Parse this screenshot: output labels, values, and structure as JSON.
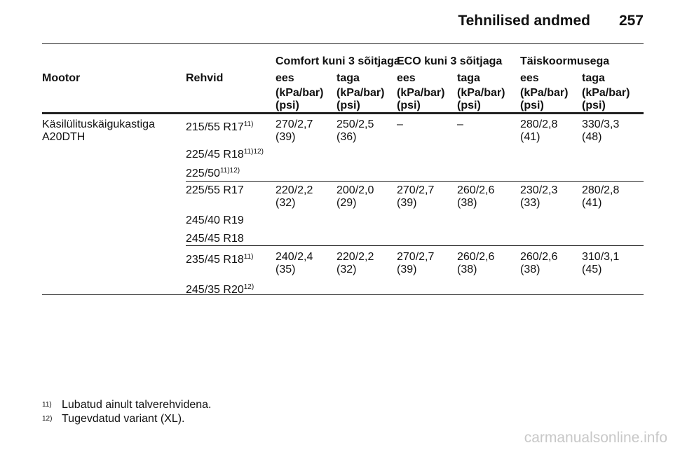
{
  "header": {
    "title": "Tehnilised andmed",
    "page": "257"
  },
  "table": {
    "group_headers": [
      "Comfort kuni 3 sõitjaga",
      "ECO kuni 3 sõitjaga",
      "Täiskoormusega"
    ],
    "columns": [
      "Mootor",
      "Rehvid",
      "ees",
      "taga",
      "ees",
      "taga",
      "ees",
      "taga"
    ],
    "units": [
      [
        "(kPa/bar)",
        "(psi)"
      ],
      [
        "(kPa/bar)",
        "(psi)"
      ],
      [
        "(kPa/bar)",
        "(psi)"
      ],
      [
        "(kPa/bar)",
        "(psi)"
      ],
      [
        "(kPa/bar)",
        "(psi)"
      ],
      [
        "(kPa/bar)",
        "(psi)"
      ]
    ],
    "engine": [
      "Käsilülituskäigukastiga",
      "A20DTH"
    ],
    "groups": [
      {
        "tires": [
          {
            "size": "215/55 R17",
            "note": "11)"
          },
          {
            "size": "225/45 R18",
            "note": "11)12)"
          },
          {
            "size": "225/50",
            "note": "11)12)"
          }
        ],
        "values": [
          [
            "270/2,7",
            "(39)"
          ],
          [
            "250/2,5",
            "(36)"
          ],
          [
            "–"
          ],
          [
            "–"
          ],
          [
            "280/2,8",
            "(41)"
          ],
          [
            "330/3,3",
            "(48)"
          ]
        ]
      },
      {
        "tires": [
          {
            "size": "225/55 R17"
          },
          {
            "size": "245/40 R19"
          },
          {
            "size": "245/45 R18"
          }
        ],
        "values": [
          [
            "220/2,2",
            "(32)"
          ],
          [
            "200/2,0",
            "(29)"
          ],
          [
            "270/2,7",
            "(39)"
          ],
          [
            "260/2,6",
            "(38)"
          ],
          [
            "230/2,3",
            "(33)"
          ],
          [
            "280/2,8",
            "(41)"
          ]
        ]
      },
      {
        "tires": [
          {
            "size": "235/45 R18",
            "note": "11)"
          },
          {
            "size": "245/35 R20",
            "note": "12)"
          }
        ],
        "values": [
          [
            "240/2,4",
            "(35)"
          ],
          [
            "220/2,2",
            "(32)"
          ],
          [
            "270/2,7",
            "(39)"
          ],
          [
            "260/2,6",
            "(38)"
          ],
          [
            "260/2,6",
            "(38)"
          ],
          [
            "310/3,1",
            "(45)"
          ]
        ]
      }
    ]
  },
  "footnotes": [
    {
      "mark": "11)",
      "text": "Lubatud ainult talverehvidena."
    },
    {
      "mark": "12)",
      "text": "Tugevdatud variant (XL)."
    }
  ],
  "watermark": "carmanualsonline.info"
}
